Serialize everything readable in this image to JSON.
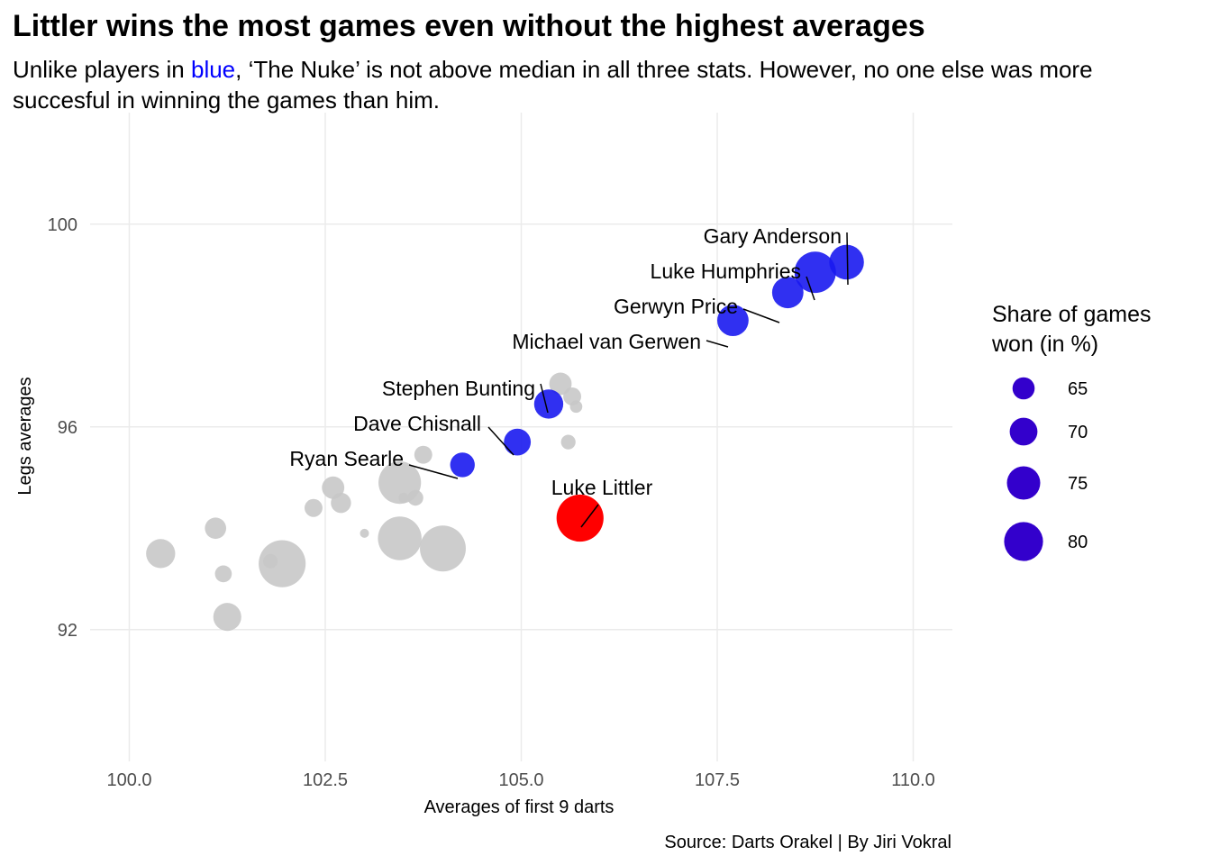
{
  "title": "Littler wins the most games even without the highest averages",
  "subtitle": {
    "part1": "Unlike players in ",
    "blue_word": "blue",
    "part2": ", ‘The Nuke’ is not above median in all three stats. However, no one else was more succesful in winning the games than him."
  },
  "chart_data": {
    "type": "scatter",
    "xlabel": "Averages of first 9 darts",
    "ylabel": "Legs averages",
    "xlim": [
      99.5,
      110.5
    ],
    "ylim": [
      89.4,
      102.2
    ],
    "x_ticks": [
      100.0,
      102.5,
      105.0,
      107.5,
      110.0
    ],
    "x_tick_labels": [
      "100.0",
      "102.5",
      "105.0",
      "107.5",
      "110.0"
    ],
    "y_ticks": [
      92,
      96,
      100
    ],
    "y_tick_labels": [
      "92",
      "96",
      "100"
    ],
    "grid": true,
    "colors": {
      "highlight": "#ff0000",
      "above_median": "#1a1af0",
      "other": "#c8c8c8",
      "legend": "#3300cc"
    },
    "legend": {
      "title_line1": "Share of games",
      "title_line2": "won (in %)",
      "placement": "right",
      "sizes": [
        65,
        70,
        75,
        80
      ],
      "labels": [
        "65",
        "70",
        "75",
        "80"
      ]
    },
    "highlight": {
      "name": "Luke Littler",
      "x": 105.75,
      "y": 94.2,
      "share": 84
    },
    "labeled_points": [
      {
        "name": "Gary Anderson",
        "x": 109.15,
        "y": 99.25,
        "share": 73
      },
      {
        "name": "Luke Humphries",
        "x": 108.75,
        "y": 99.05,
        "share": 79
      },
      {
        "name": "Gerwyn Price",
        "x": 108.4,
        "y": 98.65,
        "share": 70
      },
      {
        "name": "Michael van Gerwen",
        "x": 107.7,
        "y": 98.1,
        "share": 70
      },
      {
        "name": "Stephen Bunting",
        "x": 105.35,
        "y": 96.45,
        "share": 68
      },
      {
        "name": "Dave Chisnall",
        "x": 104.95,
        "y": 95.7,
        "share": 66
      },
      {
        "name": "Ryan Searle",
        "x": 104.25,
        "y": 95.25,
        "share": 64
      }
    ],
    "other_points": [
      {
        "x": 100.4,
        "y": 93.5,
        "share": 68
      },
      {
        "x": 101.1,
        "y": 94.0,
        "share": 61
      },
      {
        "x": 101.2,
        "y": 93.1,
        "share": 57
      },
      {
        "x": 101.25,
        "y": 92.25,
        "share": 67
      },
      {
        "x": 101.8,
        "y": 93.35,
        "share": 55
      },
      {
        "x": 101.95,
        "y": 93.3,
        "share": 84
      },
      {
        "x": 102.35,
        "y": 94.4,
        "share": 58
      },
      {
        "x": 102.6,
        "y": 94.8,
        "share": 62
      },
      {
        "x": 102.7,
        "y": 94.5,
        "share": 60
      },
      {
        "x": 103.0,
        "y": 93.9,
        "share": 50
      },
      {
        "x": 103.45,
        "y": 94.9,
        "share": 80
      },
      {
        "x": 103.45,
        "y": 93.8,
        "share": 81
      },
      {
        "x": 103.5,
        "y": 94.6,
        "share": 51
      },
      {
        "x": 103.65,
        "y": 94.6,
        "share": 56
      },
      {
        "x": 103.75,
        "y": 95.45,
        "share": 58
      },
      {
        "x": 104.0,
        "y": 93.6,
        "share": 83
      },
      {
        "x": 105.5,
        "y": 96.85,
        "share": 62
      },
      {
        "x": 105.6,
        "y": 95.7,
        "share": 55
      },
      {
        "x": 105.65,
        "y": 96.6,
        "share": 58
      },
      {
        "x": 105.7,
        "y": 96.4,
        "share": 53
      }
    ]
  },
  "caption": "Source: Darts Orakel | By Jiri Vokral"
}
